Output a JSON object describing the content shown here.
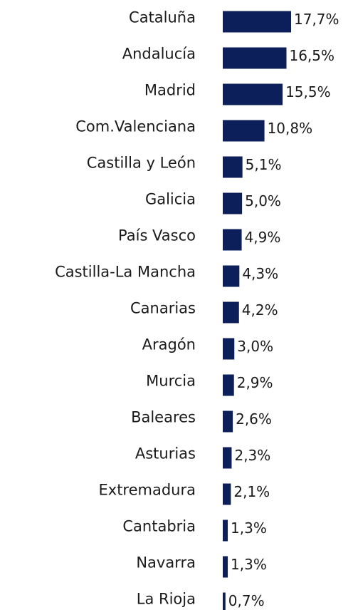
{
  "chart_data": {
    "type": "hbar",
    "categories": [
      "Cataluña",
      "Andalucía",
      "Madrid",
      "Com.Valenciana",
      "Castilla y León",
      "Galicia",
      "País Vasco",
      "Castilla-La Mancha",
      "Canarias",
      "Aragón",
      "Murcia",
      "Baleares",
      "Asturias",
      "Extremadura",
      "Cantabria",
      "Navarra",
      "La Rioja"
    ],
    "values": [
      17.7,
      16.5,
      15.5,
      10.8,
      5.1,
      5.0,
      4.9,
      4.3,
      4.2,
      3.0,
      2.9,
      2.6,
      2.3,
      2.1,
      1.3,
      1.3,
      0.7
    ],
    "value_labels": [
      "17,7%",
      "16,5%",
      "15,5%",
      "10,8%",
      "5,1%",
      "5,0%",
      "4,9%",
      "4,3%",
      "4,2%",
      "3,0%",
      "2,9%",
      "2,6%",
      "2,3%",
      "2,1%",
      "1,3%",
      "1,3%",
      "0,7%"
    ],
    "color": "#0c1f5b"
  }
}
